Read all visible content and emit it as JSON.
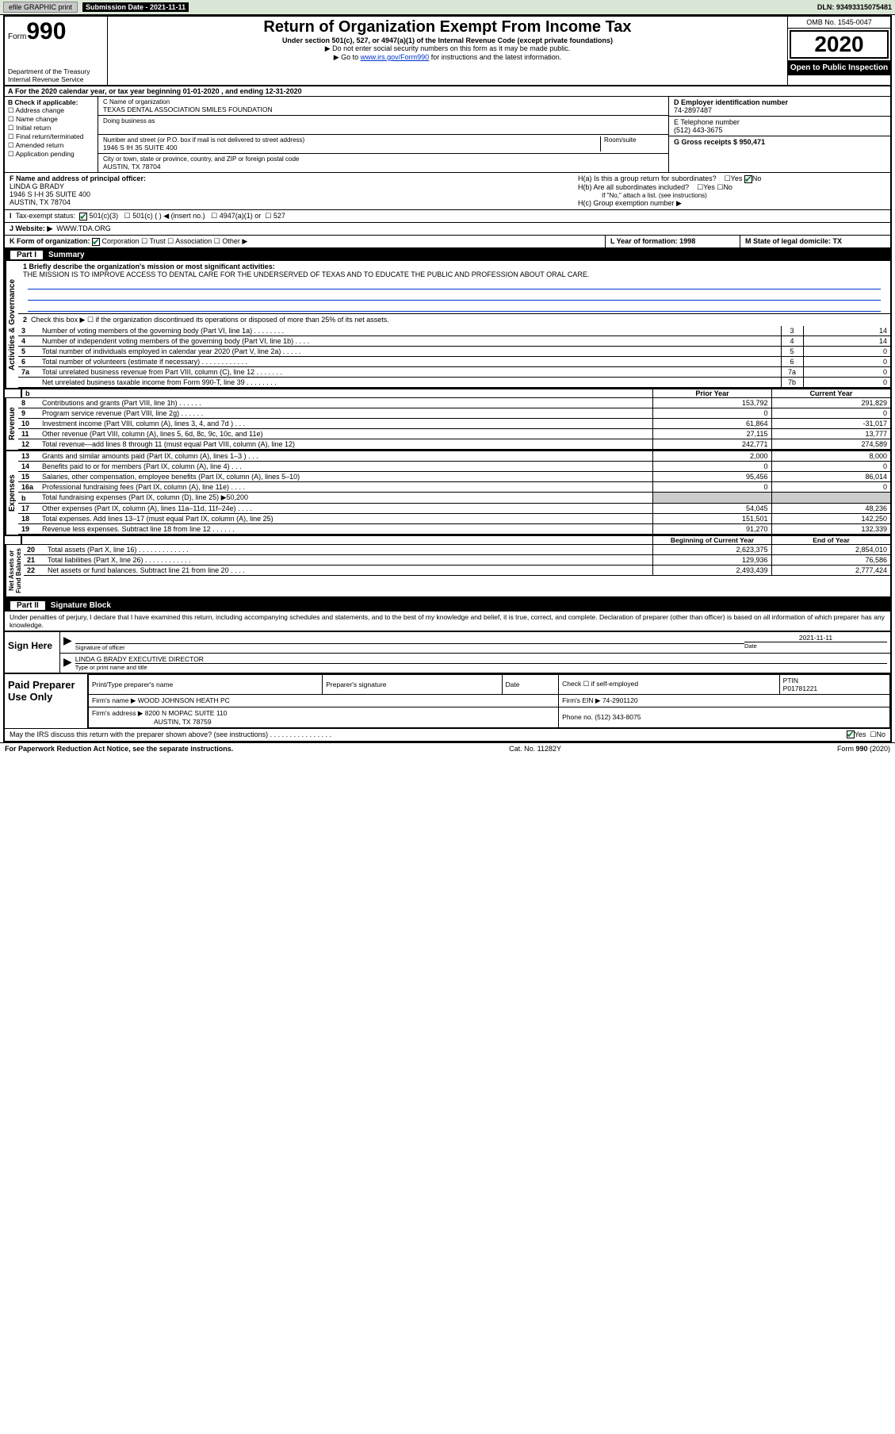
{
  "topbar": {
    "efile": "efile GRAPHIC print",
    "sub_label": "Submission Date - 2021-11-11",
    "dln": "DLN: 93493315075481"
  },
  "header": {
    "form_small": "Form",
    "form_big": "990",
    "dept": "Department of the Treasury\nInternal Revenue Service",
    "title": "Return of Organization Exempt From Income Tax",
    "sub": "Under section 501(c), 527, or 4947(a)(1) of the Internal Revenue Code (except private foundations)",
    "note1": "▶ Do not enter social security numbers on this form as it may be made public.",
    "note2_pre": "▶ Go to ",
    "note2_link": "www.irs.gov/Form990",
    "note2_post": " for instructions and the latest information.",
    "omb": "OMB No. 1545-0047",
    "year": "2020",
    "open": "Open to Public Inspection"
  },
  "row_a": "For the 2020 calendar year, or tax year beginning 01-01-2020    , and ending 12-31-2020",
  "b": {
    "lbl": "B Check if applicable:",
    "opts": [
      "Address change",
      "Name change",
      "Initial return",
      "Final return/terminated",
      "Amended return",
      "Application pending"
    ]
  },
  "c": {
    "name_lbl": "C Name of organization",
    "name": "TEXAS DENTAL ASSOCIATION SMILES FOUNDATION",
    "dba_lbl": "Doing business as",
    "addr_lbl": "Number and street (or P.O. box if mail is not delivered to street address)",
    "room_lbl": "Room/suite",
    "addr": "1946 S IH 35 SUITE 400",
    "city_lbl": "City or town, state or province, country, and ZIP or foreign postal code",
    "city": "AUSTIN, TX  78704"
  },
  "d": {
    "lbl": "D Employer identification number",
    "val": "74-2897487"
  },
  "e": {
    "lbl": "E Telephone number",
    "val": "(512) 443-3675"
  },
  "g": {
    "lbl": "G Gross receipts $ 950,471"
  },
  "f": {
    "lbl": "F  Name and address of principal officer:",
    "name": "LINDA G BRADY",
    "addr1": "1946 S I-H 35 SUITE 400",
    "addr2": "AUSTIN, TX  78704"
  },
  "h": {
    "a": "H(a)  Is this a group return for subordinates?",
    "b": "H(b)  Are all subordinates included?",
    "b_note": "If \"No,\" attach a list. (see instructions)",
    "c": "H(c)  Group exemption number ▶",
    "yes": "Yes",
    "no": "No"
  },
  "i": {
    "lbl": "Tax-exempt status:",
    "o1": "501(c)(3)",
    "o2": "501(c) (   ) ◀ (insert no.)",
    "o3": "4947(a)(1) or",
    "o4": "527"
  },
  "j": {
    "lbl": "J   Website: ▶",
    "val": "WWW.TDA.ORG"
  },
  "k": {
    "lbl": "K Form of organization:",
    "o1": "Corporation",
    "o2": "Trust",
    "o3": "Association",
    "o4": "Other ▶"
  },
  "l": "L Year of formation: 1998",
  "m": "M State of legal domicile: TX",
  "part1": "Part I      Summary",
  "p1": {
    "l1": "1   Briefly describe the organization's mission or most significant activities:",
    "mission": "THE MISSION IS TO IMPROVE ACCESS TO DENTAL CARE FOR THE UNDERSERVED OF TEXAS AND TO EDUCATE THE PUBLIC AND PROFESSION ABOUT ORAL CARE.",
    "l2": "Check this box ▶ ☐  if the organization discontinued its operations or disposed of more than 25% of its net assets.",
    "rows": [
      {
        "n": "3",
        "t": "Number of voting members of the governing body (Part VI, line 1a)   .    .    .    .    .    .    .    .",
        "b": "3",
        "v": "14"
      },
      {
        "n": "4",
        "t": "Number of independent voting members of the governing body (Part VI, line 1b)   .    .    .    .",
        "b": "4",
        "v": "14"
      },
      {
        "n": "5",
        "t": "Total number of individuals employed in calendar year 2020 (Part V, line 2a)   .    .    .    .    .",
        "b": "5",
        "v": "0"
      },
      {
        "n": "6",
        "t": "Total number of volunteers (estimate if necessary)    .    .    .    .    .    .    .    .    .    .    .    .",
        "b": "6",
        "v": "0"
      },
      {
        "n": "7a",
        "t": "Total unrelated business revenue from Part VIII, column (C), line 12   .    .    .    .    .    .    .",
        "b": "7a",
        "v": "0"
      },
      {
        "n": "",
        "t": "Net unrelated business taxable income from Form 990-T, line 39    .    .    .    .    .    .    .    .",
        "b": "7b",
        "v": "0"
      }
    ]
  },
  "fin": {
    "hdr_prior": "Prior Year",
    "hdr_curr": "Current Year",
    "revenue": [
      {
        "n": "8",
        "t": "Contributions and grants (Part VIII, line 1h)    .    .    .    .    .    .",
        "p": "153,792",
        "c": "291,829"
      },
      {
        "n": "9",
        "t": "Program service revenue (Part VIII, line 2g)    .    .    .    .    .    .",
        "p": "0",
        "c": "0"
      },
      {
        "n": "10",
        "t": "Investment income (Part VIII, column (A), lines 3, 4, and 7d )    .    .    .",
        "p": "61,864",
        "c": "-31,017"
      },
      {
        "n": "11",
        "t": "Other revenue (Part VIII, column (A), lines 5, 6d, 8c, 9c, 10c, and 11e)",
        "p": "27,115",
        "c": "13,777"
      },
      {
        "n": "12",
        "t": "Total revenue—add lines 8 through 11 (must equal Part VIII, column (A), line 12)",
        "p": "242,771",
        "c": "274,589"
      }
    ],
    "expenses": [
      {
        "n": "13",
        "t": "Grants and similar amounts paid (Part IX, column (A), lines 1–3 )   .    .    .",
        "p": "2,000",
        "c": "8,000"
      },
      {
        "n": "14",
        "t": "Benefits paid to or for members (Part IX, column (A), line 4)   .    .    .",
        "p": "0",
        "c": "0"
      },
      {
        "n": "15",
        "t": "Salaries, other compensation, employee benefits (Part IX, column (A), lines 5–10)",
        "p": "95,456",
        "c": "86,014"
      },
      {
        "n": "16a",
        "t": "Professional fundraising fees (Part IX, column (A), line 11e)   .    .    .    .",
        "p": "0",
        "c": "0"
      },
      {
        "n": "b",
        "t": "Total fundraising expenses (Part IX, column (D), line 25) ▶50,200",
        "p": "",
        "c": "",
        "shade": true
      },
      {
        "n": "17",
        "t": "Other expenses (Part IX, column (A), lines 11a–11d, 11f–24e)   .    .    .    .",
        "p": "54,045",
        "c": "48,236"
      },
      {
        "n": "18",
        "t": "Total expenses. Add lines 13–17 (must equal Part IX, column (A), line 25)",
        "p": "151,501",
        "c": "142,250"
      },
      {
        "n": "19",
        "t": "Revenue less expenses. Subtract line 18 from line 12   .    .    .    .    .    .",
        "p": "91,270",
        "c": "132,339"
      }
    ],
    "hdr_beg": "Beginning of Current Year",
    "hdr_end": "End of Year",
    "net": [
      {
        "n": "20",
        "t": "Total assets (Part X, line 16)   .    .    .    .    .    .    .    .    .    .    .    .    .",
        "p": "2,623,375",
        "c": "2,854,010"
      },
      {
        "n": "21",
        "t": "Total liabilities (Part X, line 26)   .    .    .    .    .    .    .    .    .    .    .    .",
        "p": "129,936",
        "c": "76,586"
      },
      {
        "n": "22",
        "t": "Net assets or fund balances. Subtract line 21 from line 20   .    .    .    .",
        "p": "2,493,439",
        "c": "2,777,424"
      }
    ]
  },
  "vtabs": {
    "ag": "Activities & Governance",
    "rev": "Revenue",
    "exp": "Expenses",
    "net": "Net Assets or\nFund Balances"
  },
  "part2": "Part II     Signature Block",
  "penal": "Under penalties of perjury, I declare that I have examined this return, including accompanying schedules and statements, and to the best of my knowledge and belief, it is true, correct, and complete. Declaration of preparer (other than officer) is based on all information of which preparer has any knowledge.",
  "sign": {
    "lbl": "Sign Here",
    "sig_lbl": "Signature of officer",
    "date_lbl": "Date",
    "date": "2021-11-11",
    "name": "LINDA G BRADY  EXECUTIVE DIRECTOR",
    "name_lbl": "Type or print name and title"
  },
  "prep": {
    "lbl": "Paid Preparer Use Only",
    "h1": "Print/Type preparer's name",
    "h2": "Preparer's signature",
    "h3": "Date",
    "h4": "Check ☐ if self-employed",
    "h5_lbl": "PTIN",
    "h5": "P01781221",
    "firm_lbl": "Firm's name    ▶",
    "firm": "WOOD JOHNSON HEATH PC",
    "ein_lbl": "Firm's EIN ▶",
    "ein": "74-2901120",
    "addr_lbl": "Firm's address ▶",
    "addr1": "8200 N MOPAC SUITE 110",
    "addr2": "AUSTIN, TX  78759",
    "phone_lbl": "Phone no.",
    "phone": "(512) 343-8075",
    "discuss": "May the IRS discuss this return with the preparer shown above? (see instructions)   .    .    .    .    .    .    .    .    .    .    .    .    .    .    .    .",
    "yes": "Yes",
    "no": "No"
  },
  "footer": {
    "l": "For Paperwork Reduction Act Notice, see the separate instructions.",
    "c": "Cat. No. 11282Y",
    "r": "Form 990 (2020)"
  },
  "colors": {
    "topbar_bg": "#dbe7d6",
    "link": "#0033cc",
    "check": "#0a7a3a"
  }
}
